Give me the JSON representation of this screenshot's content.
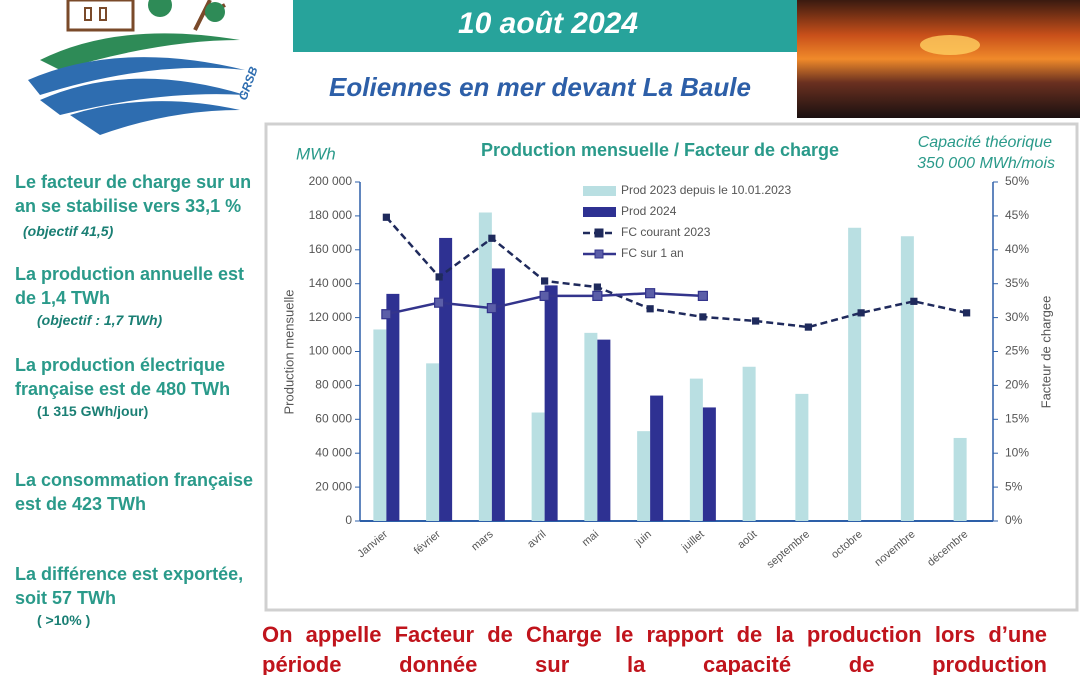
{
  "header": {
    "date": "10 août 2024",
    "subtitle": "Eoliennes en mer devant La Baule",
    "logo_text": "GRSB"
  },
  "sidebar": [
    {
      "text": "Le facteur de charge sur un an se stabilise vers 33,1 %",
      "note": "(objectif 41,5)"
    },
    {
      "text": "La production annuelle est de 1,4 TWh",
      "note": "(objectif : 1,7 TWh)"
    },
    {
      "text": "La production électrique française est de 480 TWh",
      "note": "(1 315 GWh/jour)"
    },
    {
      "text": "La consommation française est de 423 TWh",
      "note": ""
    },
    {
      "text": "La différence est exportée, soit 57 TWh",
      "note": "( >10% )"
    }
  ],
  "footer": {
    "text": "On appelle Facteur de Charge le rapport de la production lors d’une période donnée sur la capacité de production"
  },
  "chart_data": {
    "type": "bar_line",
    "title": "Production mensuelle / Facteur de charge",
    "unit_label": "MWh",
    "annotation": [
      "Capacité théorique",
      "350 000 MWh/mois"
    ],
    "y_label": "Production mensuelle",
    "y2_label": "Facteur de chargee",
    "categories": [
      "Janvier",
      "février",
      "mars",
      "avril",
      "mai",
      "juin",
      "juillet",
      "août",
      "septembre",
      "octobre",
      "novembre",
      "décembre"
    ],
    "series": [
      {
        "name": "Prod 2023 depuis le 10.01.2023",
        "type": "bar",
        "color": "#b9dfe2",
        "values": [
          113000,
          93000,
          182000,
          64000,
          111000,
          53000,
          84000,
          91000,
          75000,
          173000,
          168000,
          49000
        ]
      },
      {
        "name": "Prod 2024",
        "type": "bar",
        "color": "#2e3192",
        "values": [
          134000,
          167000,
          149000,
          139000,
          107000,
          74000,
          67000,
          null,
          null,
          null,
          null,
          null
        ]
      },
      {
        "name": "FC courant 2023",
        "type": "line",
        "dashed": true,
        "axis": "y2",
        "color": "#1f2a5c",
        "values": [
          44.8,
          36.0,
          41.7,
          35.4,
          34.5,
          31.3,
          30.1,
          29.5,
          28.6,
          30.7,
          32.4,
          30.7
        ]
      },
      {
        "name": "FC sur 1 an",
        "type": "line",
        "dashed": false,
        "axis": "y2",
        "color": "#33348c",
        "values": [
          30.5,
          32.2,
          31.4,
          33.2,
          33.2,
          33.6,
          33.2,
          null,
          null,
          null,
          null,
          null
        ]
      }
    ],
    "ylim": [
      0,
      200000
    ],
    "yticks": [
      0,
      {
        "value": 20000,
        "label": "20 000"
      },
      {
        "value": 40000,
        "label": "40 000"
      },
      {
        "value": 60000,
        "label": "60 000"
      },
      {
        "value": 80000,
        "label": "80 000"
      },
      {
        "value": 100000,
        "label": "100 000"
      },
      {
        "value": 120000,
        "label": "120 000"
      },
      {
        "value": 140000,
        "label": "140 000"
      },
      {
        "value": 160000,
        "label": "160 000"
      },
      {
        "value": 180000,
        "label": "180 000"
      },
      {
        "value": 200000,
        "label": "200 000"
      }
    ],
    "y2lim": [
      0,
      50
    ],
    "y2ticks": [
      {
        "value": 0,
        "label": "0%"
      },
      {
        "value": 5,
        "label": "5%"
      },
      {
        "value": 10,
        "label": "10%"
      },
      {
        "value": 15,
        "label": "15%"
      },
      {
        "value": 20,
        "label": "20%"
      },
      {
        "value": 25,
        "label": "25%"
      },
      {
        "value": 30,
        "label": "30%"
      },
      {
        "value": 35,
        "label": "35%"
      },
      {
        "value": 40,
        "label": "40%"
      },
      {
        "value": 45,
        "label": "45%"
      },
      {
        "value": 50,
        "label": "50%"
      }
    ]
  }
}
